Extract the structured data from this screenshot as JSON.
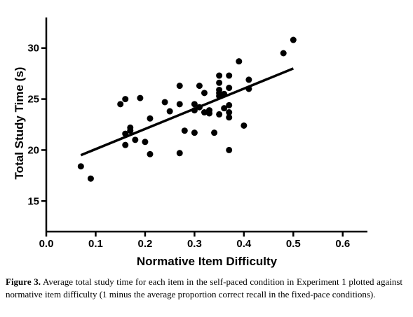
{
  "chart_data": {
    "type": "scatter",
    "title": "",
    "xlabel": "Normative Item Difficulty",
    "ylabel": "Total Study Time (s)",
    "xlim": [
      0.0,
      0.65
    ],
    "ylim": [
      12,
      33
    ],
    "xticks": [
      "0.0",
      "0.1",
      "0.2",
      "0.3",
      "0.4",
      "0.5",
      "0.6"
    ],
    "yticks": [
      "15",
      "20",
      "25",
      "30"
    ],
    "grid": false,
    "legend": "none",
    "points": [
      {
        "x": 0.07,
        "y": 18.4
      },
      {
        "x": 0.09,
        "y": 17.2
      },
      {
        "x": 0.15,
        "y": 24.5
      },
      {
        "x": 0.16,
        "y": 25.0
      },
      {
        "x": 0.16,
        "y": 21.6
      },
      {
        "x": 0.16,
        "y": 20.5
      },
      {
        "x": 0.17,
        "y": 22.2
      },
      {
        "x": 0.17,
        "y": 21.9
      },
      {
        "x": 0.18,
        "y": 21.0
      },
      {
        "x": 0.19,
        "y": 25.1
      },
      {
        "x": 0.2,
        "y": 20.8
      },
      {
        "x": 0.21,
        "y": 23.1
      },
      {
        "x": 0.21,
        "y": 19.6
      },
      {
        "x": 0.24,
        "y": 24.7
      },
      {
        "x": 0.25,
        "y": 23.8
      },
      {
        "x": 0.27,
        "y": 26.3
      },
      {
        "x": 0.27,
        "y": 24.5
      },
      {
        "x": 0.27,
        "y": 19.7
      },
      {
        "x": 0.28,
        "y": 21.9
      },
      {
        "x": 0.3,
        "y": 24.5
      },
      {
        "x": 0.3,
        "y": 23.9
      },
      {
        "x": 0.3,
        "y": 21.7
      },
      {
        "x": 0.31,
        "y": 26.3
      },
      {
        "x": 0.31,
        "y": 24.2
      },
      {
        "x": 0.32,
        "y": 25.6
      },
      {
        "x": 0.32,
        "y": 23.7
      },
      {
        "x": 0.33,
        "y": 23.9
      },
      {
        "x": 0.33,
        "y": 23.6
      },
      {
        "x": 0.34,
        "y": 21.7
      },
      {
        "x": 0.35,
        "y": 27.3
      },
      {
        "x": 0.35,
        "y": 26.6
      },
      {
        "x": 0.35,
        "y": 25.9
      },
      {
        "x": 0.35,
        "y": 25.6
      },
      {
        "x": 0.35,
        "y": 25.3
      },
      {
        "x": 0.35,
        "y": 23.5
      },
      {
        "x": 0.36,
        "y": 25.5
      },
      {
        "x": 0.36,
        "y": 24.1
      },
      {
        "x": 0.37,
        "y": 27.3
      },
      {
        "x": 0.37,
        "y": 26.1
      },
      {
        "x": 0.37,
        "y": 24.4
      },
      {
        "x": 0.37,
        "y": 23.7
      },
      {
        "x": 0.37,
        "y": 23.2
      },
      {
        "x": 0.37,
        "y": 20.0
      },
      {
        "x": 0.39,
        "y": 28.7
      },
      {
        "x": 0.4,
        "y": 22.4
      },
      {
        "x": 0.41,
        "y": 26.9
      },
      {
        "x": 0.41,
        "y": 26.0
      },
      {
        "x": 0.48,
        "y": 29.5
      },
      {
        "x": 0.5,
        "y": 30.8
      }
    ],
    "fit_line": {
      "x": [
        0.07,
        0.5
      ],
      "y": [
        19.5,
        28.0
      ]
    }
  },
  "caption": {
    "label": "Figure 3.",
    "text": " Average total study time for each item in the self-paced condition in Experiment 1 plotted against normative item difficulty (1 minus the average proportion correct recall in the fixed-pace conditions)."
  }
}
